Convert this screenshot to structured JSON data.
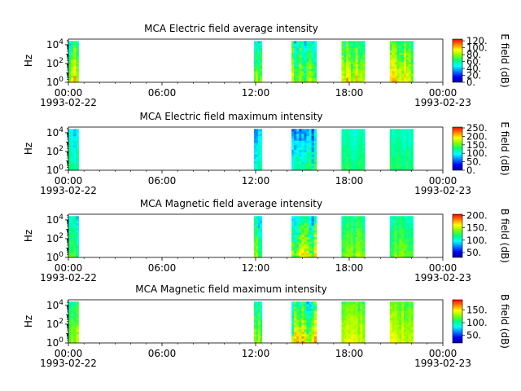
{
  "figure": {
    "time_window": {
      "start_hour": 0,
      "end_hour": 24
    }
  },
  "colormap": [
    "#00008f",
    "#0000ff",
    "#0080ff",
    "#00ffff",
    "#00ff80",
    "#80ff00",
    "#ffff00",
    "#ff8000",
    "#ff0000"
  ],
  "chart_data": [
    {
      "type": "heatmap",
      "title": "MCA  Electric field average intensity",
      "ylabel": "Hz",
      "y_scale": "log",
      "ytick_labels": [
        "10^0",
        "10^2",
        "10^4"
      ],
      "xtick_labels": [
        "00:00",
        "06:00",
        "12:00",
        "18:00",
        "00:00"
      ],
      "xtick_dates": [
        "1993-02-22",
        "1993-02-23"
      ],
      "colorbar": {
        "label": "E field (dB)",
        "vmin": 0,
        "vmax": 125,
        "ticks": [
          0,
          20,
          40,
          60,
          80,
          100,
          120
        ],
        "tick_labels": [
          "0.",
          "20.",
          "40.",
          "60.",
          "80.",
          "100.",
          "120."
        ]
      },
      "segments": [
        {
          "start_hour": 0.0,
          "end_hour": 0.65,
          "intensity_dB": 75,
          "variation_dB": 35
        },
        {
          "start_hour": 11.9,
          "end_hour": 12.4,
          "intensity_dB": 60,
          "variation_dB": 30
        },
        {
          "start_hour": 14.3,
          "end_hour": 15.9,
          "intensity_dB": 65,
          "variation_dB": 35
        },
        {
          "start_hour": 17.5,
          "end_hour": 19.0,
          "intensity_dB": 78,
          "variation_dB": 30
        },
        {
          "start_hour": 20.6,
          "end_hour": 22.1,
          "intensity_dB": 80,
          "variation_dB": 30
        }
      ]
    },
    {
      "type": "heatmap",
      "title": "MCA  Electric field maximum intensity",
      "ylabel": "Hz",
      "y_scale": "log",
      "ytick_labels": [
        "10^0",
        "10^2",
        "10^4"
      ],
      "xtick_labels": [
        "00:00",
        "06:00",
        "12:00",
        "18:00",
        "00:00"
      ],
      "xtick_dates": [
        "1993-02-22",
        "1993-02-23"
      ],
      "colorbar": {
        "label": "E field (dB)",
        "vmin": 0,
        "vmax": 255,
        "ticks": [
          0,
          50,
          100,
          150,
          200,
          250
        ],
        "tick_labels": [
          "0.",
          "50.",
          "100.",
          "150.",
          "200.",
          "250."
        ]
      },
      "segments": [
        {
          "start_hour": 0.0,
          "end_hour": 0.65,
          "intensity_dB": 110,
          "variation_dB": 40
        },
        {
          "start_hour": 11.9,
          "end_hour": 12.4,
          "intensity_dB": 100,
          "variation_dB": 40
        },
        {
          "start_hour": 14.3,
          "end_hour": 15.9,
          "intensity_dB": 95,
          "variation_dB": 60
        },
        {
          "start_hour": 17.5,
          "end_hour": 19.0,
          "intensity_dB": 120,
          "variation_dB": 25
        },
        {
          "start_hour": 20.6,
          "end_hour": 22.1,
          "intensity_dB": 120,
          "variation_dB": 25
        }
      ]
    },
    {
      "type": "heatmap",
      "title": "MCA  Magnetic field average intensity",
      "ylabel": "Hz",
      "y_scale": "log",
      "ytick_labels": [
        "10^0",
        "10^2",
        "10^4"
      ],
      "xtick_labels": [
        "00:00",
        "06:00",
        "12:00",
        "18:00",
        "00:00"
      ],
      "xtick_dates": [
        "1993-02-22",
        "1993-02-23"
      ],
      "colorbar": {
        "label": "B field (dB)",
        "vmin": 30,
        "vmax": 205,
        "ticks": [
          50,
          100,
          150,
          200
        ],
        "tick_labels": [
          "50.",
          "100.",
          "150.",
          "200."
        ]
      },
      "segments": [
        {
          "start_hour": 0.0,
          "end_hour": 0.65,
          "intensity_dB": 110,
          "variation_dB": 35
        },
        {
          "start_hour": 11.9,
          "end_hour": 12.4,
          "intensity_dB": 110,
          "variation_dB": 45
        },
        {
          "start_hour": 14.3,
          "end_hour": 15.9,
          "intensity_dB": 120,
          "variation_dB": 60
        },
        {
          "start_hour": 17.5,
          "end_hour": 19.0,
          "intensity_dB": 125,
          "variation_dB": 30
        },
        {
          "start_hour": 20.6,
          "end_hour": 22.1,
          "intensity_dB": 125,
          "variation_dB": 30
        }
      ]
    },
    {
      "type": "heatmap",
      "title": "MCA  Magnetic field maximum intensity",
      "ylabel": "Hz",
      "y_scale": "log",
      "ytick_labels": [
        "10^0",
        "10^2",
        "10^4"
      ],
      "xtick_labels": [
        "00:00",
        "06:00",
        "12:00",
        "18:00",
        "00:00"
      ],
      "xtick_dates": [
        "1993-02-22",
        "1993-02-23"
      ],
      "colorbar": {
        "label": "B field (dB)",
        "vmin": 20,
        "vmax": 190,
        "ticks": [
          50,
          100,
          150
        ],
        "tick_labels": [
          "50.",
          "100.",
          "150."
        ]
      },
      "segments": [
        {
          "start_hour": 0.0,
          "end_hour": 0.65,
          "intensity_dB": 115,
          "variation_dB": 35
        },
        {
          "start_hour": 11.9,
          "end_hour": 12.4,
          "intensity_dB": 110,
          "variation_dB": 45
        },
        {
          "start_hour": 14.3,
          "end_hour": 15.9,
          "intensity_dB": 115,
          "variation_dB": 60
        },
        {
          "start_hour": 17.5,
          "end_hour": 19.0,
          "intensity_dB": 130,
          "variation_dB": 25
        },
        {
          "start_hour": 20.6,
          "end_hour": 22.1,
          "intensity_dB": 130,
          "variation_dB": 25
        }
      ]
    }
  ]
}
